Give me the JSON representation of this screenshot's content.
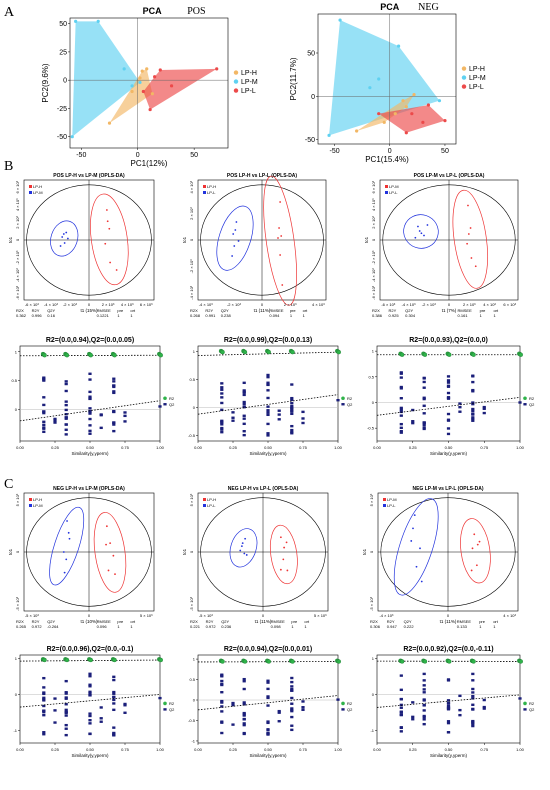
{
  "labels": {
    "panel_a": "A",
    "panel_b": "B",
    "panel_c": "C"
  },
  "colors": {
    "LP-H": "#f2b765",
    "LP-M": "#5fd1f1",
    "LP-L": "#ec4a4a",
    "ellipse_a": "#ee3333",
    "ellipse_b": "#2233dd",
    "R2": "#2fb34a",
    "Q2": "#1b1f7a"
  },
  "chart_data": [
    {
      "id": "pca-pos",
      "type": "scatter",
      "title": "PCA",
      "tag": "POS",
      "xlabel": "PC1(12%)",
      "ylabel": "PC2(9.6%)",
      "xlim": [
        -60,
        80
      ],
      "ylim": [
        -60,
        55
      ],
      "xticks": [
        -50,
        0,
        50
      ],
      "yticks": [
        -50,
        -25,
        0,
        25,
        50
      ],
      "legend": [
        "LP-H",
        "LP-M",
        "LP-L"
      ],
      "legend_position": "right",
      "series": [
        {
          "name": "LP-H",
          "points": [
            [
              -25,
              -38
            ],
            [
              4,
              8
            ],
            [
              2,
              2
            ],
            [
              8,
              10
            ],
            [
              -5,
              -10
            ],
            [
              13,
              -12
            ]
          ]
        },
        {
          "name": "LP-M",
          "points": [
            [
              -55,
              52
            ],
            [
              -35,
              52
            ],
            [
              -58,
              -50
            ],
            [
              -12,
              10
            ],
            [
              -5,
              -5
            ],
            [
              2,
              -2
            ]
          ]
        },
        {
          "name": "LP-L",
          "points": [
            [
              70,
              10
            ],
            [
              20,
              9
            ],
            [
              11,
              -26
            ],
            [
              5,
              -10
            ],
            [
              30,
              -5
            ],
            [
              15,
              3
            ]
          ]
        }
      ]
    },
    {
      "id": "pca-neg",
      "type": "scatter",
      "title": "PCA",
      "tag": "NEG",
      "xlabel": "PC1(15.4%)",
      "ylabel": "PC2(11.7%)",
      "xlim": [
        -65,
        60
      ],
      "ylim": [
        -55,
        95
      ],
      "xticks": [
        -50,
        0,
        50
      ],
      "yticks": [
        -50,
        0,
        50
      ],
      "legend": [
        "LP-H",
        "LP-M",
        "LP-L"
      ],
      "legend_position": "right",
      "series": [
        {
          "name": "LP-H",
          "points": [
            [
              -30,
              -40
            ],
            [
              15,
              -12
            ],
            [
              -5,
              -30
            ],
            [
              22,
              2
            ],
            [
              5,
              -20
            ],
            [
              12,
              -5
            ]
          ]
        },
        {
          "name": "LP-M",
          "points": [
            [
              -45,
              88
            ],
            [
              -55,
              -45
            ],
            [
              45,
              -5
            ],
            [
              8,
              58
            ],
            [
              -18,
              10
            ],
            [
              -10,
              20
            ]
          ]
        },
        {
          "name": "LP-L",
          "points": [
            [
              50,
              -28
            ],
            [
              35,
              -10
            ],
            [
              -10,
              -20
            ],
            [
              15,
              -42
            ],
            [
              20,
              -20
            ],
            [
              30,
              -30
            ]
          ]
        }
      ]
    },
    {
      "id": "opls-pos-hm",
      "type": "scatter",
      "title": "POS LP-H vs LP-M (OPLS-DA)",
      "xlabel": "t1 (15%)",
      "ylabel": "to1",
      "xlim": [
        -8,
        8
      ],
      "ylim": [
        -8,
        8
      ],
      "xticks": [
        "-6 × 10³",
        "-4 × 10³",
        "-2 × 10³",
        "0",
        "2 × 10³",
        "4 × 10³",
        "6 × 10³"
      ],
      "yticks": [
        "6 × 10³",
        "4 × 10³",
        "2 × 10³",
        "0",
        "-2 × 10³",
        "-4 × 10³",
        "-6 × 10³"
      ],
      "legend": [
        "LP-H",
        "LP-M"
      ],
      "stats_header": [
        "R2X",
        "R2Y",
        "Q2Y",
        "RMSEE",
        "pre",
        "ort"
      ],
      "stats": [
        "0.362",
        "0.996",
        "0.16",
        "0.1221",
        "1",
        "1"
      ],
      "series": [
        {
          "name": "LP-H",
          "points": [
            [
              2.2,
              4
            ],
            [
              2.5,
              1.5
            ],
            [
              2.0,
              -0.5
            ],
            [
              2.6,
              -3
            ],
            [
              3.4,
              -4
            ],
            [
              2.3,
              2.5
            ]
          ]
        },
        {
          "name": "LP-M",
          "points": [
            [
              -2.8,
              1.0
            ],
            [
              -3.3,
              0.4
            ],
            [
              -3.0,
              -0.4
            ],
            [
              -3.5,
              -0.8
            ],
            [
              -2.6,
              0.2
            ],
            [
              -3.1,
              0.8
            ]
          ]
        }
      ]
    },
    {
      "id": "opls-pos-hl",
      "type": "scatter",
      "title": "POS LP-H vs LP-L (OPLS-DA)",
      "xlabel": "t1 (11%)",
      "ylabel": "to1",
      "xlim": [
        -6,
        6
      ],
      "ylim": [
        -6,
        6
      ],
      "xticks": [
        "-4 × 10³",
        "-2 × 10³",
        "0",
        "2 × 10³",
        "4 × 10³"
      ],
      "yticks": [
        "4 × 10³",
        "2 × 10³",
        "0",
        "-2 × 10³",
        "-4 × 10³"
      ],
      "legend": [
        "LP-H",
        "LP-L"
      ],
      "stats_header": [
        "R2X",
        "R2Y",
        "Q2Y",
        "RMSEE",
        "pre",
        "ort"
      ],
      "stats": [
        "0.268",
        "0.991",
        "0.238",
        "0.094",
        "1",
        "1"
      ],
      "series": [
        {
          "name": "LP-H",
          "points": [
            [
              1.7,
              3.8
            ],
            [
              1.6,
              1.2
            ],
            [
              1.8,
              0.4
            ],
            [
              1.7,
              -1.5
            ],
            [
              1.9,
              -4.5
            ],
            [
              1.5,
              0.2
            ]
          ]
        },
        {
          "name": "LP-L",
          "points": [
            [
              -2.4,
              1.8
            ],
            [
              -2.7,
              0.6
            ],
            [
              -2.6,
              -0.6
            ],
            [
              -2.2,
              -0.1
            ],
            [
              -2.8,
              -1.6
            ],
            [
              -2.5,
              1.0
            ]
          ]
        }
      ]
    },
    {
      "id": "opls-pos-ml",
      "type": "scatter",
      "title": "POS LP-M vs LP-L (OPLS-DA)",
      "xlabel": "t1 (7%)",
      "ylabel": "to1",
      "xlim": [
        -8,
        8
      ],
      "ylim": [
        -8,
        8
      ],
      "xticks": [
        "-6 × 10³",
        "-4 × 10³",
        "-2 × 10³",
        "0",
        "2 × 10³",
        "4 × 10³",
        "6 × 10³"
      ],
      "yticks": [
        "6 × 10³",
        "4 × 10³",
        "2 × 10³",
        "0",
        "-2 × 10³",
        "-4 × 10³",
        "-6 × 10³"
      ],
      "legend": [
        "LP-M",
        "LP-L"
      ],
      "stats_header": [
        "R2X",
        "R2Y",
        "Q2Y",
        "RMSEE",
        "pre",
        "ort"
      ],
      "stats": [
        "0.386",
        "0.925",
        "0.304",
        "0.161",
        "1",
        "1"
      ],
      "series": [
        {
          "name": "LP-M",
          "points": [
            [
              2.2,
              4.6
            ],
            [
              2.5,
              1.6
            ],
            [
              2.1,
              -0.5
            ],
            [
              2.6,
              -2.4
            ],
            [
              3.1,
              -3.5
            ],
            [
              2.3,
              0.8
            ]
          ]
        },
        {
          "name": "LP-L",
          "points": [
            [
              -3.6,
              1.8
            ],
            [
              -3.2,
              0.9
            ],
            [
              -3.9,
              0.3
            ],
            [
              -2.9,
              0.6
            ],
            [
              -2.5,
              2.0
            ],
            [
              -3.4,
              1.2
            ]
          ]
        }
      ]
    },
    {
      "id": "perm-pos-hm",
      "type": "scatter",
      "title": "R2=(0.0,0.94),Q2=(0.0,0.05)",
      "xlabel": "Similarity(y,yperm)",
      "xlim": [
        0,
        1
      ],
      "ylim": [
        -0.55,
        1.1
      ],
      "xticks": [
        0.0,
        0.25,
        0.5,
        0.75,
        1.0
      ],
      "yticks": [
        1.0,
        0.5,
        0.0
      ],
      "legend": [
        "R2",
        "Q2"
      ],
      "legend_position": "right",
      "r2_line": [
        0.0,
        0.94
      ],
      "q2_line": [
        0.0,
        0.05
      ]
    },
    {
      "id": "perm-pos-hl",
      "type": "scatter",
      "title": "R2=(0.0,0.99),Q2=(0.0,0.13)",
      "xlabel": "Similarity(y,yperm)",
      "xlim": [
        0,
        1
      ],
      "ylim": [
        -0.6,
        1.1
      ],
      "xticks": [
        0.0,
        0.25,
        0.5,
        0.75,
        1.0
      ],
      "yticks": [
        1.0,
        0.5,
        0.0,
        -0.5
      ],
      "legend": [
        "R2",
        "Q2"
      ],
      "legend_position": "right",
      "r2_line": [
        0.0,
        0.99
      ],
      "q2_line": [
        0.0,
        0.13
      ]
    },
    {
      "id": "perm-pos-ml",
      "type": "scatter",
      "title": "R2=(0.0,0.93),Q2=(0.0,0)",
      "xlabel": "Similarity(y,yperm)",
      "xlim": [
        0,
        1
      ],
      "ylim": [
        -0.75,
        1.1
      ],
      "xticks": [
        0.0,
        0.25,
        0.5,
        0.75,
        1.0
      ],
      "yticks": [
        1.0,
        0.5,
        0.0,
        -0.5
      ],
      "legend": [
        "R2",
        "Q2"
      ],
      "legend_position": "right",
      "r2_line": [
        0.0,
        0.93
      ],
      "q2_line": [
        0.0,
        0.0
      ]
    },
    {
      "id": "opls-neg-hm",
      "type": "scatter",
      "title": "NEG LP-H vs LP-M (OPLS-DA)",
      "xlabel": "t1 (10%)",
      "ylabel": "to1",
      "xlim": [
        -8,
        8
      ],
      "ylim": [
        -8,
        8
      ],
      "xticks": [
        "-5 × 10³",
        "0",
        "5 × 10³"
      ],
      "yticks": [
        "5 × 10³",
        "0",
        "-5 × 10³"
      ],
      "legend": [
        "LP-H",
        "LP-M"
      ],
      "stats_header": [
        "R2X",
        "R2Y",
        "Q2Y",
        "RMSEE",
        "pre",
        "ort"
      ],
      "stats": [
        "0.265",
        "0.972",
        "-0.264",
        "0.096",
        "1",
        "1"
      ],
      "series": [
        {
          "name": "LP-H",
          "points": [
            [
              2.2,
              3.5
            ],
            [
              2.6,
              1.2
            ],
            [
              3.0,
              -0.5
            ],
            [
              2.4,
              -2.5
            ],
            [
              3.2,
              -3.0
            ],
            [
              2.1,
              1.0
            ]
          ]
        },
        {
          "name": "LP-M",
          "points": [
            [
              -2.7,
              4.2
            ],
            [
              -2.4,
              1.8
            ],
            [
              -3.1,
              0.0
            ],
            [
              -2.8,
              -1.0
            ],
            [
              -3.0,
              -2.8
            ],
            [
              -2.5,
              2.6
            ]
          ]
        }
      ]
    },
    {
      "id": "opls-neg-hl",
      "type": "scatter",
      "title": "NEG LP-H vs LP-L (OPLS-DA)",
      "xlabel": "t1 (11%)",
      "ylabel": "to1",
      "xlim": [
        -8,
        8
      ],
      "ylim": [
        -8,
        8
      ],
      "xticks": [
        "-5 × 10³",
        "0",
        "5 × 10³"
      ],
      "yticks": [
        "5 × 10³",
        "0",
        "-5 × 10³"
      ],
      "legend": [
        "LP-H",
        "LP-L"
      ],
      "stats_header": [
        "R2X",
        "R2Y",
        "Q2Y",
        "RMSEE",
        "pre",
        "ort"
      ],
      "stats": [
        "0.221",
        "0.972",
        "0.236",
        "0.098",
        "1",
        "1"
      ],
      "series": [
        {
          "name": "LP-H",
          "points": [
            [
              2.2,
              2.0
            ],
            [
              2.9,
              1.3
            ],
            [
              2.5,
              -1.0
            ],
            [
              3.0,
              -2.5
            ],
            [
              2.6,
              0.6
            ],
            [
              2.2,
              -2.4
            ]
          ]
        },
        {
          "name": "LP-L",
          "points": [
            [
              -2.2,
              1.8
            ],
            [
              -2.6,
              0.8
            ],
            [
              -2.0,
              -0.4
            ],
            [
              -2.8,
              0.2
            ],
            [
              -2.5,
              1.2
            ],
            [
              -2.3,
              -0.2
            ]
          ]
        }
      ]
    },
    {
      "id": "opls-neg-ml",
      "type": "scatter",
      "title": "NEG LP-M vs LP-L (OPLS-DA)",
      "xlabel": "t1 (11%)",
      "ylabel": "to1",
      "xlim": [
        -8,
        8
      ],
      "ylim": [
        -8,
        8
      ],
      "xticks": [
        "-4 × 10³",
        "0",
        "4 × 10³"
      ],
      "yticks": [
        "5 × 10³",
        "0",
        "-5 × 10³"
      ],
      "legend": [
        "LP-M",
        "LP-L"
      ],
      "stats_header": [
        "R2X",
        "R2Y",
        "Q2Y",
        "RMSEE",
        "pre",
        "ort"
      ],
      "stats": [
        "0.306",
        "0.947",
        "0.222",
        "0.133",
        "1",
        "1"
      ],
      "series": [
        {
          "name": "LP-M",
          "points": [
            [
              3.0,
              2.4
            ],
            [
              3.6,
              1.4
            ],
            [
              2.8,
              0.5
            ],
            [
              3.3,
              -1.8
            ],
            [
              2.7,
              -2.5
            ],
            [
              3.4,
              1.0
            ]
          ]
        },
        {
          "name": "LP-L",
          "points": [
            [
              -3.8,
              5.0
            ],
            [
              -4.0,
              3.2
            ],
            [
              -3.2,
              0.5
            ],
            [
              -3.6,
              -2.0
            ],
            [
              -3.0,
              -4.0
            ],
            [
              -4.2,
              1.5
            ]
          ]
        }
      ]
    },
    {
      "id": "perm-neg-hm",
      "type": "scatter",
      "title": "R2=(0.0,0.96),Q2=(0.0,-0.1)",
      "xlabel": "Similarity(y,yperm)",
      "xlim": [
        0,
        1
      ],
      "ylim": [
        -1.35,
        1.1
      ],
      "xticks": [
        0.0,
        0.25,
        0.5,
        0.75,
        1.0
      ],
      "yticks": [
        1,
        0,
        -1
      ],
      "legend": [
        "R2",
        "Q2"
      ],
      "legend_position": "right",
      "r2_line": [
        0.0,
        0.96
      ],
      "q2_line": [
        0.0,
        -0.1
      ]
    },
    {
      "id": "perm-neg-hl",
      "type": "scatter",
      "title": "R2=(0.0,0.94),Q2=(0.0,0.01)",
      "xlabel": "Similarity(y,yperm)",
      "xlim": [
        0,
        1
      ],
      "ylim": [
        -1.05,
        1.1
      ],
      "xticks": [
        0.0,
        0.25,
        0.5,
        0.75,
        1.0
      ],
      "yticks": [
        1.0,
        0.5,
        0.0,
        -0.5,
        -1.0
      ],
      "legend": [
        "R2",
        "Q2"
      ],
      "legend_position": "right",
      "r2_line": [
        0.0,
        0.94
      ],
      "q2_line": [
        0.0,
        0.01
      ]
    },
    {
      "id": "perm-neg-ml",
      "type": "scatter",
      "title": "R2=(0.0,0.92),Q2=(0.0,-0.11)",
      "xlabel": "Similarity(y,yperm)",
      "xlim": [
        0,
        1
      ],
      "ylim": [
        -1.35,
        1.1
      ],
      "xticks": [
        0.0,
        0.25,
        0.5,
        0.75,
        1.0
      ],
      "yticks": [
        1,
        0,
        -1
      ],
      "legend": [
        "R2",
        "Q2"
      ],
      "legend_position": "right",
      "r2_line": [
        0.0,
        0.92
      ],
      "q2_line": [
        0.0,
        -0.11
      ]
    }
  ]
}
